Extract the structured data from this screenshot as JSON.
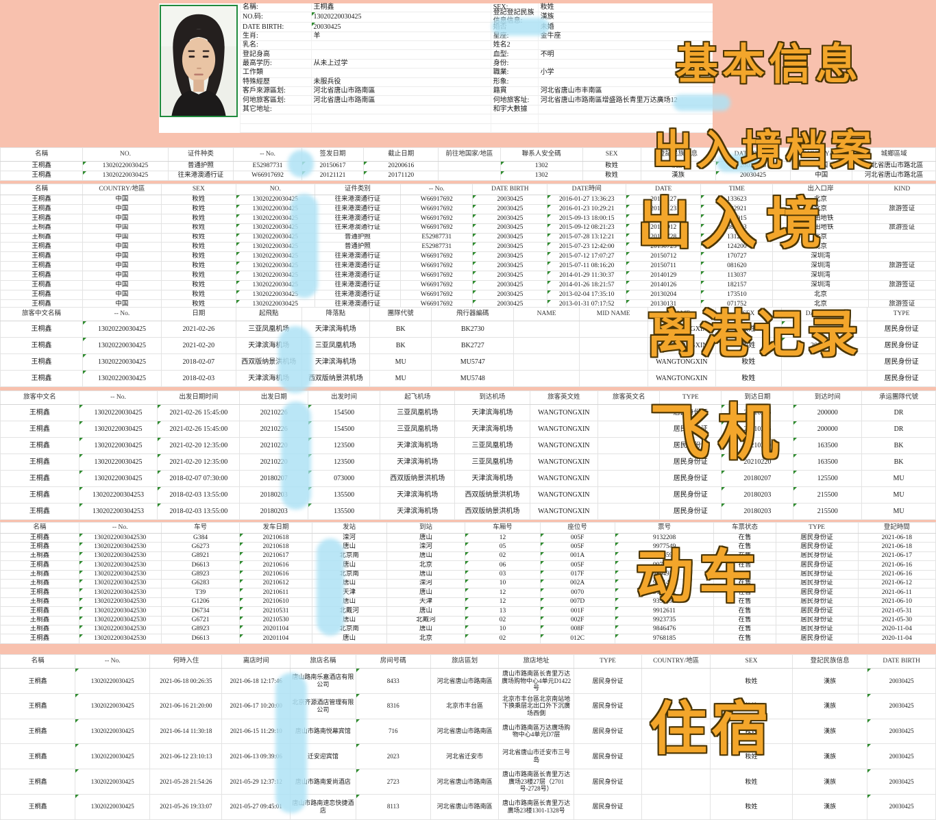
{
  "colors": {
    "page_bg": "#f8c1ae",
    "overlay_text": "#f3a62b",
    "overlay_outline": "#4a3505",
    "redaction_blur": "#aee2f5",
    "green_flag": "#2e8b2e",
    "photo_border": "#1f8a3d"
  },
  "overlays": {
    "basic_info": "基本信息",
    "entry_exit_archive": "出入境档案",
    "entry_exit": "出入境",
    "departure": "离港记录",
    "flight": "飞机",
    "train": "动车",
    "lodging": "住宿"
  },
  "profile": {
    "rows": [
      {
        "l1": "名稱:",
        "v1": "王桐鑫",
        "l2": "SEX:",
        "v2": "籹姓"
      },
      {
        "l1": "NO.码:",
        "v1": "13020220030425",
        "g1": true,
        "l2": "登記登記民族信息信息:",
        "v2": "漢族"
      },
      {
        "l1": "DATE BIRTH:",
        "v1": "20030425",
        "g1": true,
        "l2": "婚否",
        "v2": "未婚"
      },
      {
        "l1": "生肖:",
        "v1": "羊",
        "l2": "星座:",
        "v2": "金牛座"
      },
      {
        "l1": "乳名:",
        "v1": "",
        "l2": "姓名2",
        "v2": ""
      },
      {
        "l1": "登記身高",
        "v1": "",
        "l2": "血型:",
        "v2": "不明"
      },
      {
        "l1": "最高学历:",
        "v1": "从未上过学",
        "l2": "身份:",
        "v2": ""
      },
      {
        "l1": "工作類",
        "v1": "",
        "l2": "職業:",
        "v2": "小学"
      },
      {
        "l1": "特殊經歷",
        "v1": "未服兵役",
        "l2": "形象:",
        "v2": ""
      },
      {
        "l1": "客戶來源區划:",
        "v1": "河北省唐山市路南區",
        "l2": "籍貫",
        "v2": "河北省唐山市丰南區"
      },
      {
        "l1": "何地旅客區划:",
        "v1": "河北省唐山市路南區",
        "l2": "何地旅客址:",
        "v2": "河北省唐山市路南區增盛路长青里万达廣场12"
      },
      {
        "l1": "其它地址:",
        "v1": "",
        "l2": "和宇大數據",
        "v2": ""
      },
      {
        "l1": "",
        "v1": "",
        "l2": "",
        "v2": ""
      },
      {
        "l1": "",
        "v1": "",
        "l2": "",
        "v2": ""
      }
    ]
  },
  "tables": [
    {
      "headers": [
        "名稱",
        "NO.",
        "证件种类",
        "-- No.",
        "签发日期",
        "截止日期",
        "前往地国家/地區",
        "聯系人安全碼",
        "SEX",
        "登記民族信息",
        "DATE BIRTH",
        "COUNTRY/地區",
        "城鄉區域"
      ],
      "green_cols": [
        1,
        4,
        5,
        7,
        10
      ],
      "rows": [
        [
          "王桐鑫",
          "13020220030425",
          "普通护照",
          "E52987731",
          "20150617",
          "20200616",
          "",
          "1302",
          "籹姓",
          "漢族",
          "20030425",
          "中国",
          "河北省唐山市路北區"
        ],
        [
          "王桐鑫",
          "13020220030425",
          "往来港澳通行证",
          "W66917692",
          "20121121",
          "20171120",
          "",
          "1302",
          "籹姓",
          "漢族",
          "20030425",
          "中国",
          "河北省唐山市路北區"
        ]
      ]
    },
    {
      "headers": [
        "名稱",
        "COUNTRY/地區",
        "SEX",
        "NO.",
        "证件类別",
        "-- No.",
        "DATE BIRTH",
        "DATE時间",
        "DATE",
        "TIME",
        "出入口岸",
        "KIND"
      ],
      "green_cols": [
        3,
        6,
        7,
        8,
        9
      ],
      "rows": [
        [
          "王桐鑫",
          "中国",
          "籹姓",
          "13020220030425",
          "往来港澳通行证",
          "W66917692",
          "20030425",
          "2016-01-27 13:36:23",
          "20160127",
          "133623",
          "北京",
          ""
        ],
        [
          "王桐鑫",
          "中国",
          "籹姓",
          "13020220030425",
          "往来港澳通行证",
          "W66917692",
          "20030425",
          "2016-01-23 10:29:21",
          "20160123",
          "102921",
          "北京",
          "旅游签证"
        ],
        [
          "王桐鑫",
          "中国",
          "籹姓",
          "13020220030425",
          "往来港澳通行证",
          "W66917692",
          "20030425",
          "2015-09-13 18:00:15",
          "20150913",
          "180015",
          "福田地铁",
          ""
        ],
        [
          "王桐鑫",
          "中国",
          "籹姓",
          "13020220030425",
          "往来港澳通行证",
          "W66917692",
          "20030425",
          "2015-09-12 08:21:23",
          "20150912",
          "082123",
          "福田地铁",
          "旅游签证"
        ],
        [
          "王桐鑫",
          "中国",
          "籹姓",
          "13020220030425",
          "普通护照",
          "E52987731",
          "20030425",
          "2015-07-28 13:12:21",
          "20150728",
          "131221",
          "北京",
          ""
        ],
        [
          "王桐鑫",
          "中国",
          "籹姓",
          "13020220030425",
          "普通护照",
          "E52987731",
          "20030425",
          "2015-07-23 12:42:00",
          "20150723",
          "124200",
          "北京",
          ""
        ],
        [
          "王桐鑫",
          "中国",
          "籹姓",
          "13020220030425",
          "往来港澳通行证",
          "W66917692",
          "20030425",
          "2015-07-12 17:07:27",
          "20150712",
          "170727",
          "深圳湾",
          ""
        ],
        [
          "王桐鑫",
          "中国",
          "籹姓",
          "13020220030425",
          "往来港澳通行证",
          "W66917692",
          "20030425",
          "2015-07-11 08:16:20",
          "20150711",
          "081620",
          "深圳湾",
          "旅游签证"
        ],
        [
          "王桐鑫",
          "中国",
          "籹姓",
          "13020220030425",
          "往来港澳通行证",
          "W66917692",
          "20030425",
          "2014-01-29 11:30:37",
          "20140129",
          "113037",
          "深圳湾",
          ""
        ],
        [
          "王桐鑫",
          "中国",
          "籹姓",
          "13020220030425",
          "往来港澳通行证",
          "W66917692",
          "20030425",
          "2014-01-26 18:21:57",
          "20140126",
          "182157",
          "深圳湾",
          "旅游签证"
        ],
        [
          "王桐鑫",
          "中国",
          "籹姓",
          "13020220030425",
          "往来港澳通行证",
          "W66917692",
          "20030425",
          "2013-02-04 17:35:10",
          "20130204",
          "173510",
          "北京",
          ""
        ],
        [
          "王桐鑫",
          "中国",
          "籹姓",
          "13020220030425",
          "往来港澳通行证",
          "W66917692",
          "20030425",
          "2013-01-31 07:17:52",
          "20130131",
          "071752",
          "北京",
          "旅游签证"
        ]
      ]
    },
    {
      "headers": [
        "旅客中文名稱",
        "-- No.",
        "日期",
        "起飛點",
        "降落點",
        "團隊代號",
        "飛行器編碼",
        "NAME",
        "MID NAME",
        "NAME-",
        "SEX",
        "DATE BIRTH",
        "TYPE"
      ],
      "green_cols": [
        1,
        11
      ],
      "rows": [
        [
          "王桐鑫",
          "13020220030425",
          "2021-02-26",
          "三亚凤凰机场",
          "天津滨海机场",
          "BK",
          "BK2730",
          "",
          "",
          "WANGTONGXIN",
          "籹姓",
          "20030425",
          "居民身份证"
        ],
        [
          "王桐鑫",
          "13020220030425",
          "2021-02-20",
          "天津滨海机场",
          "三亚凤凰机场",
          "BK",
          "BK2727",
          "",
          "",
          "WANGTONGXIN",
          "籹姓",
          "20030425",
          "居民身份证"
        ],
        [
          "王桐鑫",
          "13020220030425",
          "2018-02-07",
          "西双版纳景洪机场",
          "天津滨海机场",
          "MU",
          "MU5747",
          "",
          "",
          "WANGTONGXIN",
          "籹姓",
          "",
          "居民身份证"
        ],
        [
          "王桐鑫",
          "13020220030425",
          "2018-02-03",
          "天津滨海机场",
          "西双版纳景洪机场",
          "MU",
          "MU5748",
          "",
          "",
          "WANGTONGXIN",
          "籹姓",
          "",
          "居民身份证"
        ]
      ]
    },
    {
      "headers": [
        "旅客中文名",
        "-- No.",
        "出发日期时间",
        "出发日期",
        "出发时间",
        "起飞机场",
        "到达机场",
        "旅客英文姓",
        "旅客英文名",
        "TYPE",
        "到达日期",
        "到达时间",
        "承运團隊代號"
      ],
      "green_cols": [
        1,
        2,
        4,
        10,
        11
      ],
      "rows": [
        [
          "王桐鑫",
          "13020220030425",
          "2021-02-26 15:45:00",
          "20210226",
          "154500",
          "三亚凤凰机场",
          "天津滨海机场",
          "WANGTONGXIN",
          "",
          "居民身份证",
          "20210226",
          "200000",
          "DR"
        ],
        [
          "王桐鑫",
          "13020220030425",
          "2021-02-26 15:45:00",
          "20210226",
          "154500",
          "三亚凤凰机场",
          "天津滨海机场",
          "WANGTONGXIN",
          "",
          "居民身份证",
          "20210226",
          "200000",
          "DR"
        ],
        [
          "王桐鑫",
          "13020220030425",
          "2021-02-20 12:35:00",
          "20210220",
          "123500",
          "天津滨海机场",
          "三亚凤凰机场",
          "WANGTONGXIN",
          "",
          "居民身份证",
          "20210220",
          "163500",
          "BK"
        ],
        [
          "王桐鑫",
          "13020220030425",
          "2021-02-20 12:35:00",
          "20210220",
          "123500",
          "天津滨海机场",
          "三亚凤凰机场",
          "WANGTONGXIN",
          "",
          "居民身份证",
          "20210220",
          "163500",
          "BK"
        ],
        [
          "王桐鑫",
          "13020220030425",
          "2018-02-07 07:30:00",
          "20180207",
          "073000",
          "西双版纳景洪机场",
          "天津滨海机场",
          "WANGTONGXIN",
          "",
          "居民身份证",
          "20180207",
          "125500",
          "MU"
        ],
        [
          "王桐鑫",
          "130202200304253",
          "2018-02-03 13:55:00",
          "20180203",
          "135500",
          "天津滨海机场",
          "西双版纳景洪机场",
          "WANGTONGXIN",
          "",
          "居民身份证",
          "20180203",
          "215500",
          "MU"
        ],
        [
          "王桐鑫",
          "130202200304253",
          "2018-02-03 13:55:00",
          "20180203",
          "135500",
          "天津滨海机场",
          "西双版纳景洪机场",
          "WANGTONGXIN",
          "",
          "居民身份证",
          "20180203",
          "215500",
          "MU"
        ]
      ]
    },
    {
      "headers": [
        "名稱",
        "-- No.",
        "车号",
        "发车日期",
        "发站",
        "到站",
        "车厢号",
        "座位号",
        "票号",
        "车票状态",
        "TYPE",
        "登記時間"
      ],
      "green_cols": [
        1,
        3,
        6,
        7,
        8
      ],
      "rows": [
        [
          "王桐鑫",
          "1302022003042530",
          "G384",
          "20210618",
          "滦河",
          "唐山",
          "12",
          "005F",
          "9132208",
          "在售",
          "居民身份证",
          "2021-06-18"
        ],
        [
          "王桐鑫",
          "1302022003042530",
          "G6273",
          "20210618",
          "唐山",
          "滦河",
          "05",
          "005F",
          "9977549",
          "在售",
          "居民身份证",
          "2021-06-18"
        ],
        [
          "王桐鑫",
          "1302022003042530",
          "G8921",
          "20210617",
          "北京南",
          "唐山",
          "02",
          "001A",
          "9826593",
          "在售",
          "居民身份证",
          "2021-06-17"
        ],
        [
          "王桐鑫",
          "1302022003042530",
          "D6613",
          "20210616",
          "唐山",
          "北京",
          "06",
          "005F",
          "9971648",
          "在售",
          "居民身份证",
          "2021-06-16"
        ],
        [
          "王桐鑫",
          "1302022003042530",
          "G8923",
          "20210616",
          "北京南",
          "唐山",
          "03",
          "017F",
          "9804928",
          "在售",
          "居民身份证",
          "2021-06-16"
        ],
        [
          "王桐鑫",
          "1302022003042530",
          "G6283",
          "20210612",
          "唐山",
          "滦河",
          "10",
          "002A",
          "9531438",
          "在售",
          "居民身份证",
          "2021-06-12"
        ],
        [
          "王桐鑫",
          "1302022003042530",
          "T39",
          "20210611",
          "天津",
          "唐山",
          "12",
          "0070",
          "9122932",
          "在售",
          "居民身份证",
          "2021-06-11"
        ],
        [
          "王桐鑫",
          "1302022003042530",
          "G1206",
          "20210610",
          "唐山",
          "天津",
          "12",
          "007D",
          "9359393",
          "在售",
          "居民身份证",
          "2021-06-10"
        ],
        [
          "王桐鑫",
          "1302022003042530",
          "D6734",
          "20210531",
          "北戴河",
          "唐山",
          "13",
          "001F",
          "9912611",
          "在售",
          "居民身份证",
          "2021-05-31"
        ],
        [
          "王桐鑫",
          "1302022003042530",
          "G6721",
          "20210530",
          "唐山",
          "北戴河",
          "02",
          "002F",
          "9923735",
          "在售",
          "居民身份证",
          "2021-05-30"
        ],
        [
          "王桐鑫",
          "1302022003042530",
          "G8923",
          "20201104",
          "北京南",
          "唐山",
          "10",
          "008F",
          "9846476",
          "在售",
          "居民身份证",
          "2020-11-04"
        ],
        [
          "王桐鑫",
          "1302022003042530",
          "D6613",
          "20201104",
          "唐山",
          "北京",
          "02",
          "012C",
          "9768185",
          "在售",
          "居民身份证",
          "2020-11-04"
        ]
      ]
    },
    {
      "headers": [
        "名稱",
        "-- No.",
        "何時入住",
        "离店时间",
        "旅店名稱",
        "房间号碼",
        "旅店區划",
        "旅店地址",
        "TYPE",
        "COUNTRY/地區",
        "SEX",
        "登記民族信息",
        "DATE BIRTH"
      ],
      "green_cols": [
        1,
        5,
        12
      ],
      "rows": [
        [
          "王桐鑫",
          "13020220030425",
          "2021-06-18 00:26:35",
          "2021-06-18 12:17:46",
          "唐山路南乐嘉酒店有限公司",
          "8433",
          "河北省唐山市路南區",
          "唐山市路南區长青里万达廣场购物中心4单元D1422号",
          "居民身份证",
          "",
          "籹姓",
          "漢族",
          "20030425"
        ],
        [
          "王桐鑫",
          "13020220030425",
          "2021-06-16 21:20:00",
          "2021-06-17 10:20:00",
          "北京齐源酒店管理有限公司",
          "8316",
          "北京市丰台區",
          "北京市丰台區北京南站地下换乘层北出口外下沉廣场西側",
          "居民身份证",
          "",
          "籹姓",
          "漢族",
          "20030425"
        ],
        [
          "王桐鑫",
          "13020220030425",
          "2021-06-14 11:30:18",
          "2021-06-15 11:29:10",
          "唐山市路南悦幕宾馆",
          "716",
          "河北省唐山市路南區",
          "唐山市路南區万达廣场购物中心4单元D7层",
          "居民身份证",
          "",
          "籹姓",
          "漢族",
          "20030425"
        ],
        [
          "王桐鑫",
          "13020220030425",
          "2021-06-12 23:10:13",
          "2021-06-13 09:39:06",
          "迁安迎宾馆",
          "2023",
          "河北省迁安市",
          "河北省唐山市迁安市三号岛",
          "居民身份证",
          "",
          "籹姓",
          "漢族",
          "20030425"
        ],
        [
          "王桐鑫",
          "13020220030425",
          "2021-05-28 21:54:26",
          "2021-05-29 12:37:12",
          "唐山市路南爱尚酒店",
          "2723",
          "河北省唐山市路南區",
          "唐山市路南區长青里万达廣场23楼27层（2701号-2728号）",
          "居民身份证",
          "",
          "籹姓",
          "漢族",
          "20030425"
        ],
        [
          "王桐鑫",
          "13020220030425",
          "2021-05-26 19:33:07",
          "2021-05-27 09:45:01",
          "唐山市路南速恋快捷酒店",
          "8113",
          "河北省唐山市路南區",
          "唐山市路南區长青里万达廣场23楼1301-1328号",
          "居民身份证",
          "",
          "籹姓",
          "漢族",
          "20030425"
        ]
      ]
    }
  ]
}
